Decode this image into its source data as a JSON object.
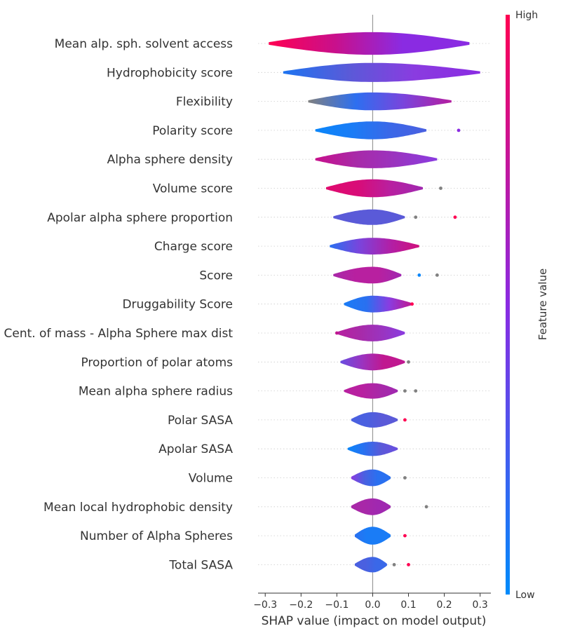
{
  "chart_data": {
    "type": "violin",
    "xlabel": "SHAP value (impact on model output)",
    "xlim": [
      -0.32,
      0.33
    ],
    "xticks": [
      -0.3,
      -0.2,
      -0.1,
      0.0,
      0.1,
      0.2,
      0.3
    ],
    "xtick_labels": [
      "−0.3",
      "−0.2",
      "−0.1",
      "0.0",
      "0.1",
      "0.2",
      "0.3"
    ],
    "colorbar": {
      "label": "Feature value",
      "high_label": "High",
      "low_label": "Low",
      "high_color": "#ff0052",
      "mid_color": "#8a2be2",
      "low_color": "#008bfb"
    },
    "missing_color": "#808080",
    "features": [
      {
        "name": "Mean alp. sph. solvent access",
        "min": -0.29,
        "max": 0.27,
        "width": 0.95,
        "colors": [
          "#ff0052",
          "#c8108c",
          "#8a2be2",
          "#8a2be2"
        ],
        "outliers": []
      },
      {
        "name": "Hydrophobicity score",
        "min": -0.25,
        "max": 0.3,
        "width": 0.8,
        "colors": [
          "#1e74f0",
          "#5a5ad8",
          "#8a3ce0",
          "#8a2be2"
        ],
        "outliers": []
      },
      {
        "name": "Flexibility",
        "min": -0.18,
        "max": 0.22,
        "width": 0.75,
        "colors": [
          "#808080",
          "#2d6ff0",
          "#7a44dc",
          "#b41ea0"
        ],
        "outliers": []
      },
      {
        "name": "Polarity score",
        "min": -0.16,
        "max": 0.15,
        "width": 0.75,
        "colors": [
          "#0a86fa",
          "#1a7cf6",
          "#3a68e8",
          "#4a60e0"
        ],
        "outliers": [
          {
            "x": 0.24,
            "c": "#8a2be2"
          }
        ]
      },
      {
        "name": "Alpha sphere density",
        "min": -0.16,
        "max": 0.18,
        "width": 0.75,
        "colors": [
          "#c8108c",
          "#a82aa8",
          "#9a34c0",
          "#8a3ce0"
        ],
        "outliers": []
      },
      {
        "name": "Volume score",
        "min": -0.13,
        "max": 0.14,
        "width": 0.75,
        "colors": [
          "#e00a6e",
          "#d80c78",
          "#b820a0",
          "#a028b0"
        ],
        "outliers": [
          {
            "x": 0.19,
            "c": "#808080"
          }
        ]
      },
      {
        "name": "Apolar alpha sphere proportion",
        "min": -0.11,
        "max": 0.09,
        "width": 0.65,
        "colors": [
          "#5a5ad8",
          "#5a5ad8",
          "#5a5ad8",
          "#5a5ad8"
        ],
        "outliers": [
          {
            "x": 0.12,
            "c": "#808080"
          },
          {
            "x": 0.23,
            "c": "#ff0052"
          }
        ]
      },
      {
        "name": "Charge score",
        "min": -0.12,
        "max": 0.13,
        "width": 0.7,
        "colors": [
          "#2a70f0",
          "#7a44dc",
          "#b020a8",
          "#d0107c"
        ],
        "outliers": []
      },
      {
        "name": "Score",
        "min": -0.11,
        "max": 0.08,
        "width": 0.7,
        "colors": [
          "#a828a8",
          "#b820a0",
          "#b820a0",
          "#a028b0"
        ],
        "outliers": [
          {
            "x": 0.13,
            "c": "#0a86fa"
          },
          {
            "x": 0.18,
            "c": "#808080"
          }
        ]
      },
      {
        "name": "Druggability Score",
        "min": -0.08,
        "max": 0.11,
        "width": 0.7,
        "colors": [
          "#1a7cf6",
          "#2a70f0",
          "#8a3ce0",
          "#c01890"
        ],
        "outliers": [
          {
            "x": 0.11,
            "c": "#ff0052"
          }
        ]
      },
      {
        "name": "Cent. of mass - Alpha Sphere max dist",
        "min": -0.1,
        "max": 0.09,
        "width": 0.7,
        "colors": [
          "#b820a0",
          "#a82aa8",
          "#9a34c0",
          "#8a3ce0"
        ],
        "outliers": [
          {
            "x": -0.1,
            "c": "#c01890"
          }
        ]
      },
      {
        "name": "Proportion of polar atoms",
        "min": -0.09,
        "max": 0.09,
        "width": 0.7,
        "colors": [
          "#6a4ee0",
          "#9a34c0",
          "#c01890",
          "#c01890"
        ],
        "outliers": [
          {
            "x": 0.1,
            "c": "#808080"
          }
        ]
      },
      {
        "name": "Mean alpha sphere radius",
        "min": -0.08,
        "max": 0.07,
        "width": 0.65,
        "colors": [
          "#b820a0",
          "#b820a0",
          "#a828a8",
          "#a028b0"
        ],
        "outliers": [
          {
            "x": 0.09,
            "c": "#808080"
          },
          {
            "x": 0.12,
            "c": "#808080"
          }
        ]
      },
      {
        "name": "Polar SASA",
        "min": -0.06,
        "max": 0.07,
        "width": 0.65,
        "colors": [
          "#4a60e0",
          "#4a60e0",
          "#5a5ad8",
          "#5a5ad8"
        ],
        "outliers": [
          {
            "x": 0.09,
            "c": "#ff0052"
          }
        ]
      },
      {
        "name": "Apolar SASA",
        "min": -0.07,
        "max": 0.07,
        "width": 0.6,
        "colors": [
          "#0a86fa",
          "#2a70f0",
          "#5a5ad8",
          "#6a4ee0"
        ],
        "outliers": []
      },
      {
        "name": "Volume",
        "min": -0.06,
        "max": 0.05,
        "width": 0.7,
        "colors": [
          "#8a3ce0",
          "#4a60e0",
          "#2a70f0",
          "#2a70f0"
        ],
        "outliers": [
          {
            "x": 0.09,
            "c": "#808080"
          }
        ]
      },
      {
        "name": "Mean local hydrophobic density",
        "min": -0.06,
        "max": 0.05,
        "width": 0.7,
        "colors": [
          "#a828a8",
          "#a828a8",
          "#a028b0",
          "#a028b0"
        ],
        "outliers": [
          {
            "x": 0.15,
            "c": "#808080"
          }
        ]
      },
      {
        "name": "Number of Alpha Spheres",
        "min": -0.05,
        "max": 0.05,
        "width": 0.75,
        "colors": [
          "#2a70f0",
          "#1a7cf6",
          "#1a7cf6",
          "#1a7cf6"
        ],
        "outliers": [
          {
            "x": 0.09,
            "c": "#ff0052"
          }
        ]
      },
      {
        "name": "Total SASA",
        "min": -0.05,
        "max": 0.04,
        "width": 0.65,
        "colors": [
          "#4a60e0",
          "#4a60e0",
          "#3a68e8",
          "#3a68e8"
        ],
        "outliers": [
          {
            "x": 0.06,
            "c": "#808080"
          },
          {
            "x": 0.1,
            "c": "#ff0052"
          }
        ]
      }
    ]
  }
}
